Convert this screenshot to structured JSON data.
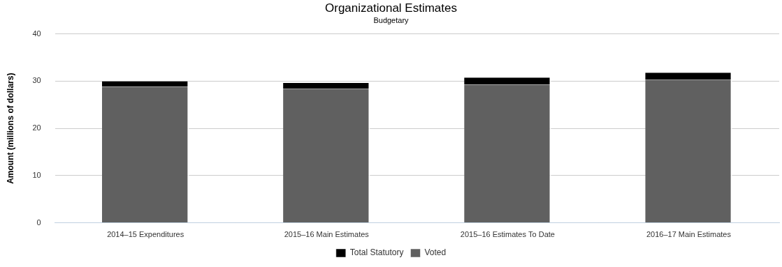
{
  "chart_data": {
    "type": "bar",
    "title": "Organizational Estimates",
    "subtitle": "Budgetary",
    "y_label": "Amount (millions of dollars)",
    "categories": [
      "2014–15 Expenditures",
      "2015–16 Main Estimates",
      "2015–16 Estimates To Date",
      "2016–17 Main Estimates"
    ],
    "series": [
      {
        "name": "Total Statutory",
        "color": "#000000",
        "values": [
          1.2,
          1.2,
          1.5,
          1.5
        ]
      },
      {
        "name": "Voted",
        "color": "#606060",
        "values": [
          28.8,
          28.4,
          29.25,
          30.3
        ]
      }
    ],
    "stacked": true,
    "ylim": [
      0,
      40
    ],
    "yticks": [
      0,
      10,
      20,
      30,
      40
    ],
    "grid": true,
    "legend": "bottom"
  }
}
